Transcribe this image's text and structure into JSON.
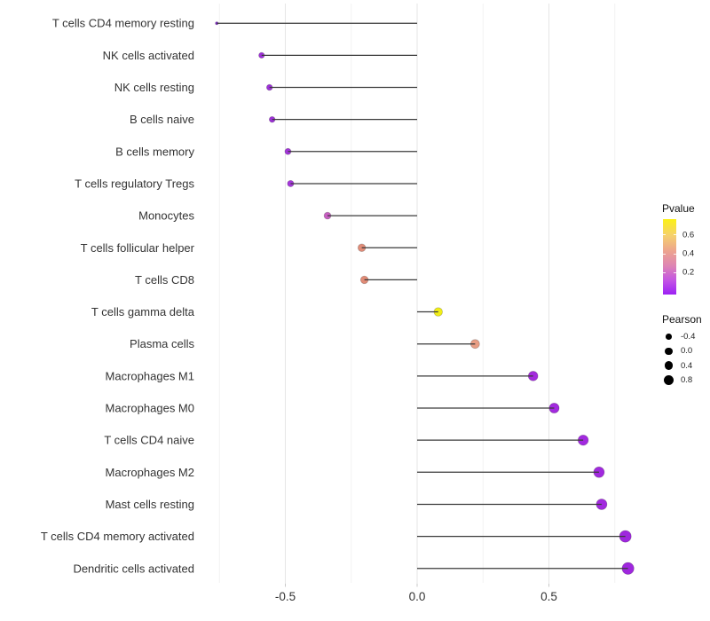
{
  "chart_data": {
    "type": "scatter",
    "variant": "lollipop",
    "title": "",
    "xlabel": "",
    "ylabel": "",
    "x_axis": {
      "tick_labels": [
        "-0.5",
        "0.0",
        "0.5"
      ],
      "tick_values": [
        -0.5,
        0.0,
        0.5
      ],
      "minor_values": [
        -0.75,
        -0.25,
        0.25,
        0.75
      ],
      "xlim": [
        -0.87,
        0.87
      ]
    },
    "points": [
      {
        "label": "T cells CD4 memory resting",
        "pearson": -0.76,
        "color": "#8429CF",
        "r": 1.6
      },
      {
        "label": "NK cells activated",
        "pearson": -0.59,
        "color": "#9D2FD8",
        "r": 3.2
      },
      {
        "label": "NK cells resting",
        "pearson": -0.56,
        "color": "#9D30D8",
        "r": 3.3
      },
      {
        "label": "B cells naive",
        "pearson": -0.55,
        "color": "#9D30D8",
        "r": 3.3
      },
      {
        "label": "B cells memory",
        "pearson": -0.49,
        "color": "#A336DA",
        "r": 3.5
      },
      {
        "label": "T cells regulatory  Tregs",
        "pearson": -0.48,
        "color": "#A537DB",
        "r": 3.6
      },
      {
        "label": "Monocytes",
        "pearson": -0.34,
        "color": "#C75FC1",
        "r": 3.9
      },
      {
        "label": "T cells follicular helper",
        "pearson": -0.21,
        "color": "#E18C78",
        "r": 4.3
      },
      {
        "label": "T cells CD8",
        "pearson": -0.2,
        "color": "#E18B76",
        "r": 4.3
      },
      {
        "label": "T cells gamma delta",
        "pearson": 0.08,
        "color": "#F1EE17",
        "r": 4.8
      },
      {
        "label": "Plasma cells",
        "pearson": 0.22,
        "color": "#E89E85",
        "r": 5.0
      },
      {
        "label": "Macrophages M1",
        "pearson": 0.44,
        "color": "#A42BDD",
        "r": 5.4
      },
      {
        "label": "Macrophages M0",
        "pearson": 0.52,
        "color": "#A32ADF",
        "r": 5.6
      },
      {
        "label": "T cells CD4 naive",
        "pearson": 0.63,
        "color": "#A22ADF",
        "r": 5.8
      },
      {
        "label": "Macrophages M2",
        "pearson": 0.69,
        "color": "#A129DE",
        "r": 6.0
      },
      {
        "label": "Mast cells resting",
        "pearson": 0.7,
        "color": "#A129DE",
        "r": 6.0
      },
      {
        "label": "T cells CD4 memory activated",
        "pearson": 0.79,
        "color": "#9F27DE",
        "r": 6.6
      },
      {
        "label": "Dendritic cells activated",
        "pearson": 0.8,
        "color": "#9F27DE",
        "r": 6.7
      }
    ],
    "legends": {
      "pvalue": {
        "title": "Pvalue",
        "tick_labels": [
          "0.6",
          "0.4",
          "0.2"
        ],
        "tick_positions_pct": [
          21,
          46,
          71
        ],
        "gradient_stops": [
          "#FBF115 0%",
          "#F5D06E 22%",
          "#EDA48E 42%",
          "#DE85B4 62%",
          "#C253E5 82%",
          "#9C21F4 100%"
        ]
      },
      "pearson": {
        "title": "Pearson",
        "dot_color": "#000000",
        "items": [
          {
            "label": "-0.4",
            "r": 3.3
          },
          {
            "label": "0.0",
            "r": 4.1
          },
          {
            "label": "0.4",
            "r": 4.9
          },
          {
            "label": "0.8",
            "r": 5.7
          }
        ]
      }
    },
    "colors": {
      "stem": "#3A3A3A",
      "grid_major": "#E6E6E6",
      "grid_minor": "#F2F2F2",
      "axis_text": "#333333",
      "axis_tick": "#C9C9C9",
      "background": "#FFFFFF"
    },
    "layout_hints": {
      "grid": true,
      "legend_position": "right",
      "zero_line_x": 0.0
    }
  }
}
